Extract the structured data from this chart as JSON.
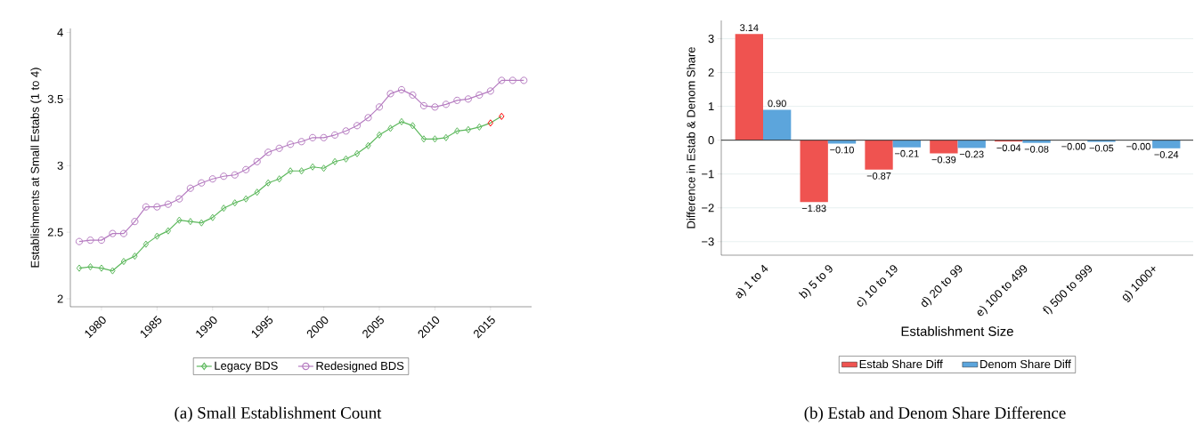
{
  "chart_data": [
    {
      "type": "line",
      "title": "(a) Small Establishment Count",
      "ylabel": "Establishments at Small Estabs (1 to 4)",
      "xlim": [
        1977.2,
        2018.7
      ],
      "ylim": [
        1.94,
        4.03
      ],
      "xticks": [
        1980,
        1985,
        1990,
        1995,
        2000,
        2005,
        2010,
        2015
      ],
      "yticks": [
        2,
        2.5,
        3,
        3.5,
        4
      ],
      "legend": "bottom",
      "series": [
        {
          "name": "Legacy BDS",
          "color": "#5cb85c",
          "marker": "diamond",
          "x": [
            1978,
            1979,
            1980,
            1981,
            1982,
            1983,
            1984,
            1985,
            1986,
            1987,
            1988,
            1989,
            1990,
            1991,
            1992,
            1993,
            1994,
            1995,
            1996,
            1997,
            1998,
            1999,
            2000,
            2001,
            2002,
            2003,
            2004,
            2005,
            2006,
            2007,
            2008,
            2009,
            2010,
            2011,
            2012,
            2013,
            2014,
            2015,
            2016
          ],
          "values": [
            2.23,
            2.24,
            2.23,
            2.21,
            2.28,
            2.32,
            2.41,
            2.47,
            2.51,
            2.59,
            2.58,
            2.57,
            2.61,
            2.68,
            2.72,
            2.75,
            2.8,
            2.87,
            2.9,
            2.96,
            2.96,
            2.99,
            2.98,
            3.03,
            3.05,
            3.09,
            3.15,
            3.23,
            3.28,
            3.33,
            3.3,
            3.2,
            3.2,
            3.21,
            3.26,
            3.27,
            3.29,
            3.32,
            3.37
          ],
          "colors": [
            "#5cb85c",
            "#5cb85c",
            "#5cb85c",
            "#5cb85c",
            "#5cb85c",
            "#5cb85c",
            "#5cb85c",
            "#5cb85c",
            "#5cb85c",
            "#5cb85c",
            "#5cb85c",
            "#5cb85c",
            "#5cb85c",
            "#5cb85c",
            "#5cb85c",
            "#5cb85c",
            "#5cb85c",
            "#5cb85c",
            "#5cb85c",
            "#5cb85c",
            "#5cb85c",
            "#5cb85c",
            "#5cb85c",
            "#5cb85c",
            "#5cb85c",
            "#5cb85c",
            "#5cb85c",
            "#5cb85c",
            "#5cb85c",
            "#5cb85c",
            "#5cb85c",
            "#5cb85c",
            "#5cb85c",
            "#5cb85c",
            "#5cb85c",
            "#5cb85c",
            "#5cb85c",
            "#ff0000",
            "#ff0000"
          ]
        },
        {
          "name": "Redesigned BDS",
          "color": "#b57bc0",
          "marker": "circle",
          "x": [
            1978,
            1979,
            1980,
            1981,
            1982,
            1983,
            1984,
            1985,
            1986,
            1987,
            1988,
            1989,
            1990,
            1991,
            1992,
            1993,
            1994,
            1995,
            1996,
            1997,
            1998,
            1999,
            2000,
            2001,
            2002,
            2003,
            2004,
            2005,
            2006,
            2007,
            2008,
            2009,
            2010,
            2011,
            2012,
            2013,
            2014,
            2015,
            2016,
            2017,
            2018
          ],
          "values": [
            2.43,
            2.44,
            2.44,
            2.49,
            2.49,
            2.58,
            2.69,
            2.69,
            2.71,
            2.75,
            2.83,
            2.87,
            2.9,
            2.92,
            2.93,
            2.97,
            3.03,
            3.1,
            3.13,
            3.16,
            3.18,
            3.21,
            3.21,
            3.23,
            3.26,
            3.3,
            3.36,
            3.44,
            3.54,
            3.57,
            3.53,
            3.45,
            3.44,
            3.46,
            3.49,
            3.5,
            3.53,
            3.56,
            3.64,
            3.64,
            3.64
          ]
        }
      ]
    },
    {
      "type": "bar",
      "title": "(b) Estab and Denom Share Difference",
      "xlabel": "Establishment Size",
      "ylabel": "Difference in Estab & Denom Share",
      "categories": [
        "a) 1 to 4",
        "b) 5 to 9",
        "c) 10 to 19",
        "d) 20 to 99",
        "e) 100 to 499",
        "f) 500 to 999",
        "g) 1000+"
      ],
      "ylim": [
        -3.4,
        3.54
      ],
      "yticks": [
        {
          "value": -3,
          "label": "−3"
        },
        {
          "value": -2,
          "label": "−2"
        },
        {
          "value": -1,
          "label": "−1"
        },
        0,
        1,
        2,
        3
      ],
      "grid": "y",
      "legend": "bottom",
      "ref_lines": [
        {
          "axis": "y",
          "value": 0,
          "color": "#333333"
        }
      ],
      "series": [
        {
          "name": "Estab Share Diff",
          "color": "#ef5350",
          "values": [
            3.14,
            -1.83,
            -0.87,
            -0.39,
            -0.04,
            0,
            0
          ],
          "value_labels": [
            "3.14",
            "−1.83",
            "−0.87",
            "−0.39",
            "−0.04",
            "−0.00",
            "−0.00"
          ]
        },
        {
          "name": "Denom Share Diff",
          "color": "#5ca5dc",
          "values": [
            0.9,
            -0.1,
            -0.21,
            -0.23,
            -0.08,
            -0.05,
            -0.24
          ],
          "value_labels": [
            "0.90",
            "−0.10",
            "−0.21",
            "−0.23",
            "−0.08",
            "−0.05",
            "−0.24"
          ]
        }
      ]
    }
  ]
}
